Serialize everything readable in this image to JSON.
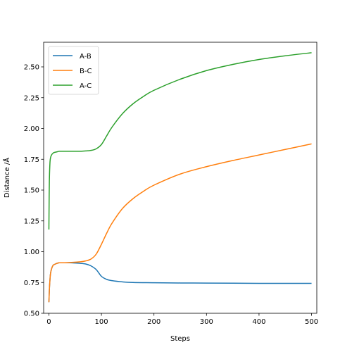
{
  "chart_data": {
    "type": "line",
    "title": "",
    "xlabel": "Steps",
    "ylabel": "Distance /Å",
    "xlim": [
      -10,
      510
    ],
    "ylim": [
      0.5,
      2.7
    ],
    "xticks": [
      0,
      100,
      200,
      300,
      400,
      500
    ],
    "yticks": [
      0.5,
      0.75,
      1.0,
      1.25,
      1.5,
      1.75,
      2.0,
      2.25,
      2.5
    ],
    "xtick_labels": [
      "0",
      "100",
      "200",
      "300",
      "400",
      "500"
    ],
    "ytick_labels": [
      "0.50",
      "0.75",
      "1.00",
      "1.25",
      "1.50",
      "1.75",
      "2.00",
      "2.25",
      "2.50"
    ],
    "grid": false,
    "legend_position": "top-left",
    "series": [
      {
        "name": "A-B",
        "color": "#1f77b4",
        "x": [
          0,
          1,
          2,
          3,
          5,
          8,
          10,
          15,
          20,
          30,
          40,
          50,
          60,
          70,
          80,
          90,
          100,
          110,
          120,
          140,
          160,
          200,
          250,
          300,
          350,
          400,
          450,
          500
        ],
        "y": [
          0.59,
          0.7,
          0.77,
          0.82,
          0.86,
          0.89,
          0.895,
          0.905,
          0.91,
          0.91,
          0.91,
          0.908,
          0.905,
          0.9,
          0.885,
          0.855,
          0.8,
          0.775,
          0.765,
          0.755,
          0.75,
          0.748,
          0.746,
          0.745,
          0.744,
          0.743,
          0.743,
          0.743
        ]
      },
      {
        "name": "B-C",
        "color": "#ff7f0e",
        "x": [
          0,
          1,
          2,
          3,
          5,
          8,
          10,
          15,
          20,
          30,
          40,
          50,
          60,
          70,
          80,
          90,
          100,
          110,
          120,
          140,
          160,
          180,
          200,
          250,
          300,
          350,
          400,
          450,
          500
        ],
        "y": [
          0.59,
          0.7,
          0.77,
          0.82,
          0.86,
          0.89,
          0.895,
          0.905,
          0.91,
          0.91,
          0.912,
          0.915,
          0.918,
          0.925,
          0.94,
          0.98,
          1.06,
          1.15,
          1.23,
          1.35,
          1.43,
          1.49,
          1.54,
          1.63,
          1.69,
          1.74,
          1.785,
          1.83,
          1.875
        ]
      },
      {
        "name": "A-C",
        "color": "#2ca02c",
        "x": [
          0,
          0.5,
          1,
          2,
          3,
          5,
          8,
          10,
          15,
          20,
          30,
          40,
          50,
          60,
          70,
          80,
          90,
          100,
          110,
          120,
          140,
          160,
          180,
          200,
          250,
          300,
          350,
          400,
          450,
          500
        ],
        "y": [
          1.18,
          1.45,
          1.6,
          1.72,
          1.76,
          1.785,
          1.8,
          1.805,
          1.81,
          1.815,
          1.815,
          1.815,
          1.815,
          1.815,
          1.818,
          1.822,
          1.835,
          1.87,
          1.94,
          2.01,
          2.12,
          2.2,
          2.26,
          2.31,
          2.4,
          2.47,
          2.52,
          2.56,
          2.59,
          2.615
        ]
      }
    ]
  }
}
